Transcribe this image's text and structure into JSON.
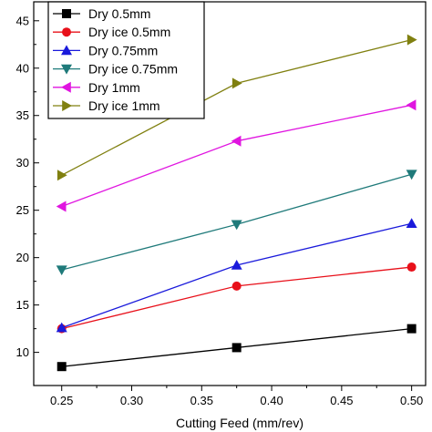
{
  "chart_data": {
    "type": "line",
    "xlabel": "Cutting Feed (mm/rev)",
    "ylabel": "",
    "xlim": [
      0.23,
      0.51
    ],
    "ylim": [
      6.5,
      47
    ],
    "xticks": [
      0.25,
      0.3,
      0.35,
      0.4,
      0.45,
      0.5
    ],
    "xtick_labels": [
      "0.25",
      "0.30",
      "0.35",
      "0.40",
      "0.45",
      "0.50"
    ],
    "yticks": [
      10,
      15,
      20,
      25,
      30,
      35,
      40,
      45
    ],
    "ytick_labels": [
      "10",
      "15",
      "20",
      "25",
      "30",
      "35",
      "40",
      "45"
    ],
    "x": [
      0.25,
      0.375,
      0.5
    ],
    "grid": false,
    "legend_position": "top-left",
    "series": [
      {
        "name": "Dry 0.5mm",
        "values": [
          8.5,
          10.5,
          12.5
        ],
        "color": "#000000",
        "marker": "square"
      },
      {
        "name": "Dry ice 0.5mm",
        "values": [
          12.5,
          17.0,
          19.0
        ],
        "color": "#e8101a",
        "marker": "circle"
      },
      {
        "name": "Dry 0.75mm",
        "values": [
          12.6,
          19.2,
          23.6
        ],
        "color": "#1a1adb",
        "marker": "triangle-up"
      },
      {
        "name": "Dry ice 0.75mm",
        "values": [
          18.7,
          23.5,
          28.8
        ],
        "color": "#1f7a7a",
        "marker": "triangle-down"
      },
      {
        "name": "Dry 1mm",
        "values": [
          25.4,
          32.3,
          36.1
        ],
        "color": "#e015e0",
        "marker": "triangle-left"
      },
      {
        "name": "Dry ice 1mm",
        "values": [
          28.7,
          38.4,
          43.0
        ],
        "color": "#808010",
        "marker": "triangle-right"
      }
    ]
  }
}
